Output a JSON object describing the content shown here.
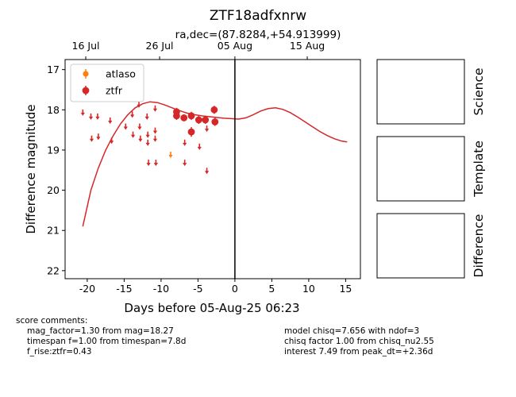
{
  "chart_data": {
    "type": "scatter",
    "title": "ZTF18adfxnrw",
    "subtitle": "ra,dec=(87.8284,+54.913999)",
    "xlabel": "Days before 05-Aug-25 06:23",
    "ylabel": "Difference magnitude",
    "xlim": [
      -23,
      17
    ],
    "ylim": [
      22.2,
      16.75
    ],
    "y_inverted": true,
    "x_ticks": [
      -20,
      -15,
      -10,
      -5,
      0,
      5,
      10,
      15
    ],
    "y_ticks": [
      17,
      18,
      19,
      20,
      21,
      22
    ],
    "top_axis_ticks": [
      {
        "x": -20.2,
        "label": "16 Jul"
      },
      {
        "x": -10.2,
        "label": "26 Jul"
      },
      {
        "x": 0.0,
        "label": "05 Aug"
      },
      {
        "x": 9.8,
        "label": "15 Aug"
      }
    ],
    "grid": false,
    "legend_position": "upper-left",
    "vertical_line_x": 0,
    "series": [
      {
        "name": "atlaso",
        "color": "#ff7f0e",
        "upper_limits": [
          [
            -8.7,
            19.1
          ]
        ]
      },
      {
        "name": "ztfr",
        "color": "#d62728",
        "detections": [
          {
            "x": -7.9,
            "y": 18.05,
            "err": 0.1
          },
          {
            "x": -7.9,
            "y": 18.15,
            "err": 0.1
          },
          {
            "x": -6.9,
            "y": 18.2,
            "err": 0.08
          },
          {
            "x": -5.9,
            "y": 18.15,
            "err": 0.1
          },
          {
            "x": -5.9,
            "y": 18.55,
            "err": 0.12
          },
          {
            "x": -4.9,
            "y": 18.25,
            "err": 0.1
          },
          {
            "x": -4.0,
            "y": 18.25,
            "err": 0.1
          },
          {
            "x": -2.8,
            "y": 18.0,
            "err": 0.1
          },
          {
            "x": -2.7,
            "y": 18.3,
            "err": 0.1
          }
        ],
        "upper_limits": [
          [
            -20.6,
            18.05
          ],
          [
            -19.5,
            18.15
          ],
          [
            -19.4,
            18.7
          ],
          [
            -18.6,
            18.15
          ],
          [
            -18.5,
            18.65
          ],
          [
            -16.9,
            18.25
          ],
          [
            -16.7,
            18.75
          ],
          [
            -14.8,
            18.4
          ],
          [
            -13.9,
            18.1
          ],
          [
            -13.8,
            18.6
          ],
          [
            -13.0,
            17.85
          ],
          [
            -12.9,
            18.4
          ],
          [
            -12.8,
            18.7
          ],
          [
            -11.9,
            18.15
          ],
          [
            -11.8,
            18.6
          ],
          [
            -11.8,
            18.8
          ],
          [
            -11.7,
            19.3
          ],
          [
            -10.8,
            17.95
          ],
          [
            -10.8,
            18.5
          ],
          [
            -10.8,
            18.7
          ],
          [
            -10.7,
            19.3
          ],
          [
            -6.8,
            18.8
          ],
          [
            -6.8,
            19.3
          ],
          [
            -4.8,
            18.9
          ],
          [
            -3.8,
            18.45
          ],
          [
            -3.8,
            19.5
          ]
        ]
      }
    ],
    "model_curve": {
      "color": "#d62728",
      "x": [
        -20.6,
        -19.5,
        -18.5,
        -17.5,
        -16.5,
        -15.5,
        -14.5,
        -13.5,
        -12.5,
        -11.5,
        -10.5,
        -9.5,
        -8.5,
        -7.5,
        -6.5,
        -5.5,
        -4.5,
        -3.5,
        -2.5,
        -1.5,
        -0.5,
        0.5,
        1.5,
        2.5,
        3.5,
        4.5,
        5.5,
        6.5,
        7.5,
        8.5,
        9.5,
        10.5,
        11.5,
        12.5,
        13.5,
        14.5,
        15.2
      ],
      "y": [
        20.9,
        20.0,
        19.45,
        19.0,
        18.65,
        18.35,
        18.12,
        17.95,
        17.85,
        17.8,
        17.82,
        17.88,
        17.95,
        18.02,
        18.08,
        18.12,
        18.15,
        18.17,
        18.19,
        18.21,
        18.22,
        18.23,
        18.2,
        18.12,
        18.03,
        17.97,
        17.95,
        17.99,
        18.07,
        18.18,
        18.3,
        18.42,
        18.54,
        18.64,
        18.72,
        18.78,
        18.8
      ]
    },
    "side_panels": [
      "Science",
      "Template",
      "Difference"
    ]
  },
  "comments": {
    "left": [
      "score comments:",
      "mag_factor=1.30 from mag=18.27",
      "timespan f=1.00 from timespan=7.8d",
      "f_rise:ztfr=0.43"
    ],
    "right": [
      "model chisq=7.656 with ndof=3",
      "chisq factor 1.00 from chisq_nu2.55",
      "interest 7.49 from peak_dt=+2.36d"
    ]
  }
}
